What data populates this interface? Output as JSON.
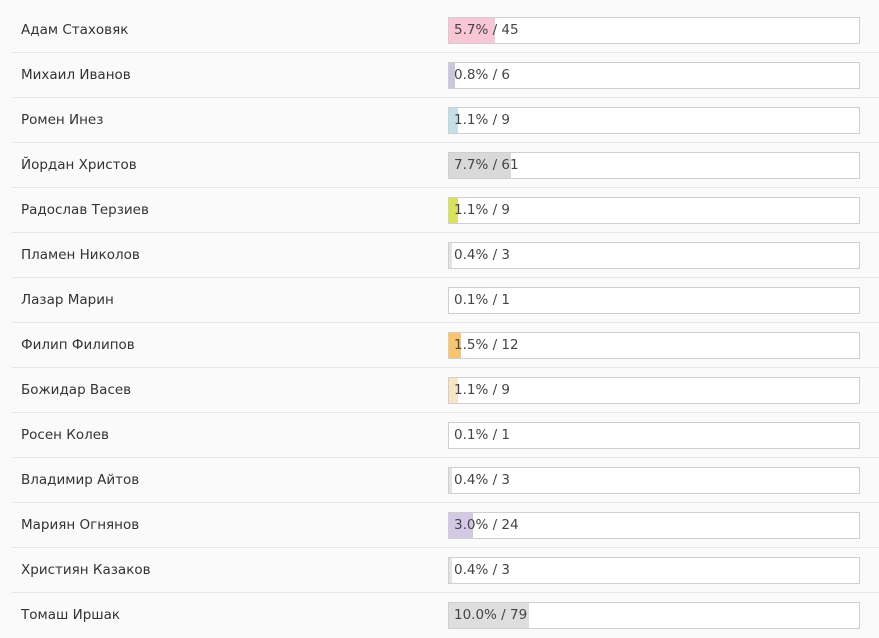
{
  "poll": {
    "rows": [
      {
        "name": "Адам Стаховяк",
        "label": "5.7% / 45",
        "percent": 5.7,
        "color": "#f9c6d6"
      },
      {
        "name": "Михаил Иванов",
        "label": "0.8% / 6",
        "percent": 0.8,
        "color": "#cbc6de"
      },
      {
        "name": "Ромен Инез",
        "label": "1.1% / 9",
        "percent": 1.1,
        "color": "#c5dfe8"
      },
      {
        "name": "Йордан Христов",
        "label": "7.7% / 61",
        "percent": 7.7,
        "color": "#d9d9d9"
      },
      {
        "name": "Радослав Терзиев",
        "label": "1.1% / 9",
        "percent": 1.1,
        "color": "#d9e35a"
      },
      {
        "name": "Пламен Николов",
        "label": "0.4% / 3",
        "percent": 0.4,
        "color": "#e3e3e3"
      },
      {
        "name": "Лазар Марин",
        "label": "0.1% / 1",
        "percent": 0.1,
        "color": "#e3e3e3"
      },
      {
        "name": "Филип Филипов",
        "label": "1.5% / 12",
        "percent": 1.5,
        "color": "#f8c46e"
      },
      {
        "name": "Божидар Васев",
        "label": "1.1% / 9",
        "percent": 1.1,
        "color": "#f7e5c6"
      },
      {
        "name": "Росен Колев",
        "label": "0.1% / 1",
        "percent": 0.1,
        "color": "#e3e3e3"
      },
      {
        "name": "Владимир Айтов",
        "label": "0.4% / 3",
        "percent": 0.4,
        "color": "#e3e3e3"
      },
      {
        "name": "Мариян Огнянов",
        "label": "3.0% / 24",
        "percent": 3.0,
        "color": "#d3c8e6"
      },
      {
        "name": "Християн Казаков",
        "label": "0.4% / 3",
        "percent": 0.4,
        "color": "#e3e3e3"
      },
      {
        "name": "Томаш Иршак",
        "label": "10.0% / 79",
        "percent": 10.0,
        "color": "#dedede"
      }
    ]
  }
}
